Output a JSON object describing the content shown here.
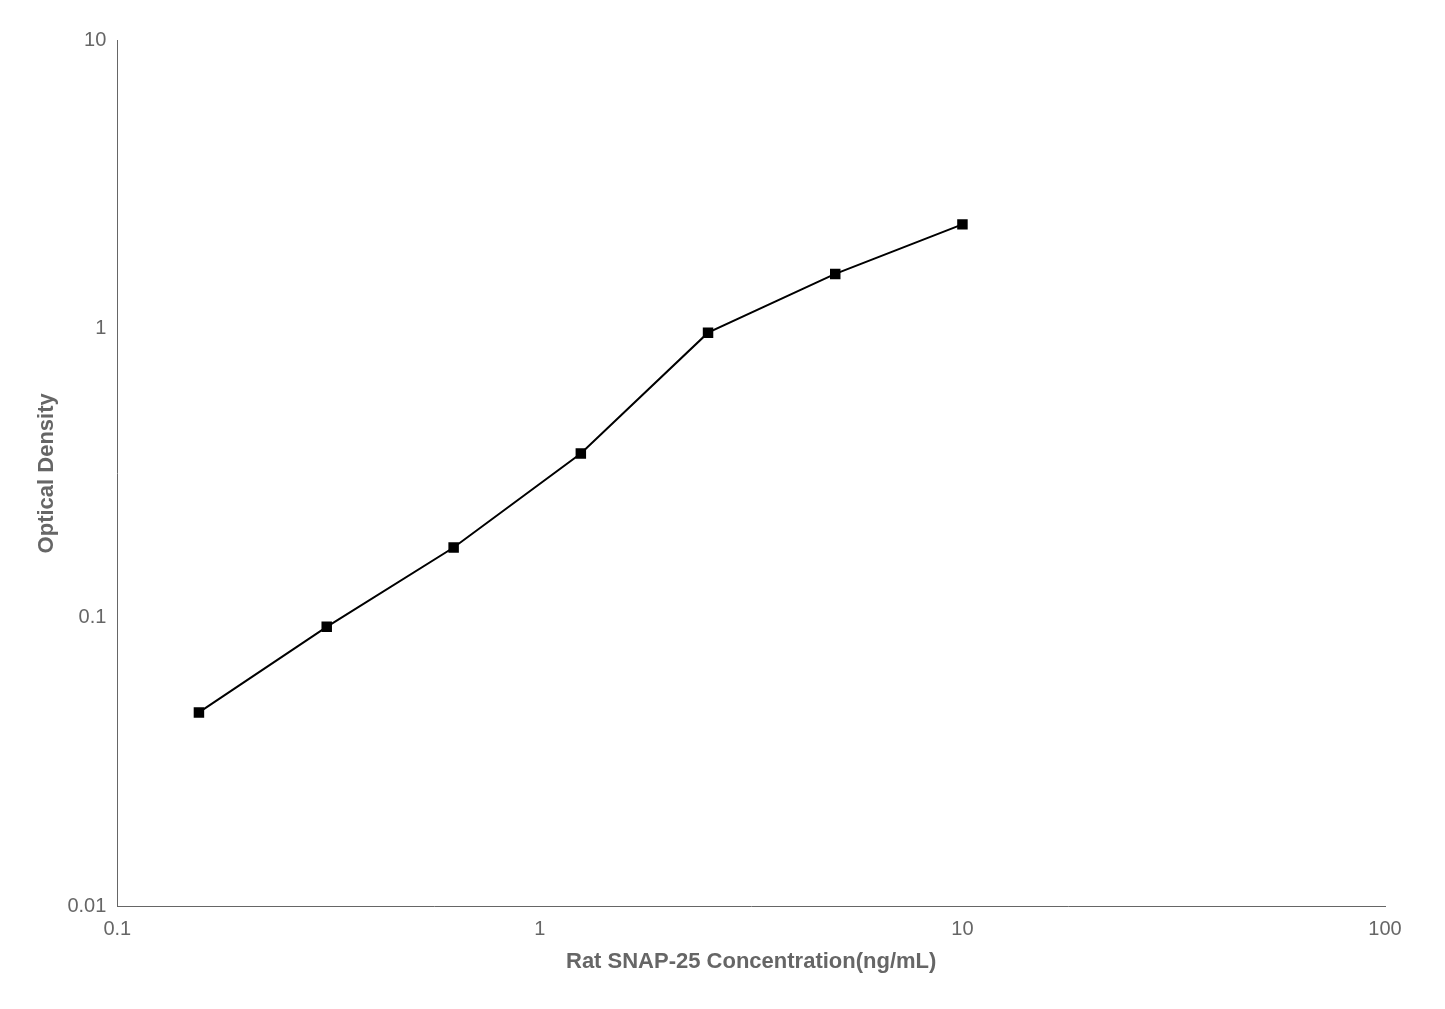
{
  "chart_data": {
    "type": "line",
    "x": [
      0.156,
      0.313,
      0.625,
      1.25,
      2.5,
      5.0,
      10.0
    ],
    "values": [
      0.047,
      0.093,
      0.175,
      0.37,
      0.97,
      1.55,
      2.3
    ],
    "xlabel": "Rat SNAP-25 Concentration(ng/mL)",
    "ylabel": "Optical Density",
    "xlim": [
      0.1,
      100
    ],
    "ylim": [
      0.01,
      10
    ],
    "xticks": [
      0.1,
      1,
      10,
      100
    ],
    "yticks": [
      0.01,
      0.1,
      1,
      10
    ],
    "log": true,
    "grid": false,
    "color": "#000000",
    "marker": "square",
    "line_style": "solid"
  }
}
